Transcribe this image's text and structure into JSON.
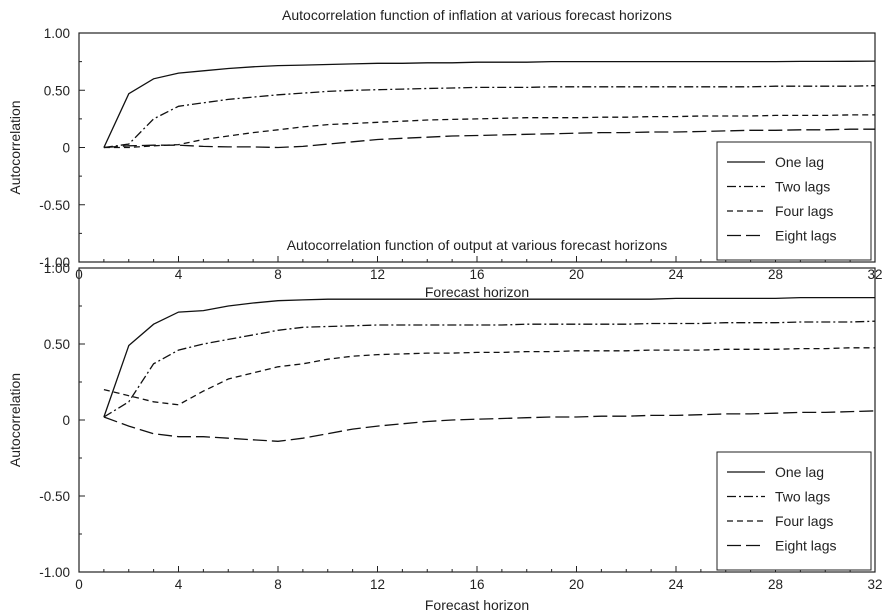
{
  "chart_data": [
    {
      "type": "line",
      "title": "Autocorrelation function of inflation at various forecast horizons",
      "xlabel": "Forecast horizon",
      "ylabel": "Autocorrelation",
      "xlim": [
        0,
        32
      ],
      "ylim": [
        -1,
        1
      ],
      "xticks": [
        0,
        4,
        8,
        12,
        16,
        20,
        24,
        28,
        32
      ],
      "yticks": [
        -1,
        -0.5,
        0,
        0.5,
        1
      ],
      "ytick_labels": [
        "-1.00",
        "-0.50",
        "0",
        "0.50",
        "1.00"
      ],
      "legend_position": "bottom-right",
      "grid": false,
      "x": [
        1,
        2,
        3,
        4,
        5,
        6,
        7,
        8,
        9,
        10,
        11,
        12,
        13,
        14,
        15,
        16,
        17,
        18,
        19,
        20,
        21,
        22,
        23,
        24,
        25,
        26,
        27,
        28,
        29,
        30,
        31,
        32
      ],
      "series": [
        {
          "name": "One lag",
          "dash": "solid",
          "values": [
            0.0,
            0.47,
            0.6,
            0.65,
            0.67,
            0.69,
            0.705,
            0.715,
            0.72,
            0.725,
            0.73,
            0.735,
            0.735,
            0.74,
            0.74,
            0.745,
            0.745,
            0.745,
            0.75,
            0.75,
            0.75,
            0.75,
            0.75,
            0.75,
            0.75,
            0.75,
            0.75,
            0.75,
            0.752,
            0.752,
            0.753,
            0.755
          ]
        },
        {
          "name": "Two lags",
          "dash": "dashdot",
          "values": [
            0.0,
            0.03,
            0.25,
            0.36,
            0.39,
            0.42,
            0.44,
            0.46,
            0.475,
            0.49,
            0.5,
            0.505,
            0.51,
            0.515,
            0.52,
            0.525,
            0.525,
            0.525,
            0.53,
            0.53,
            0.53,
            0.53,
            0.53,
            0.53,
            0.53,
            0.53,
            0.53,
            0.535,
            0.535,
            0.535,
            0.535,
            0.54
          ]
        },
        {
          "name": "Four lags",
          "dash": "dashed",
          "values": [
            0.0,
            0.0,
            0.015,
            0.025,
            0.07,
            0.1,
            0.13,
            0.155,
            0.18,
            0.2,
            0.21,
            0.22,
            0.23,
            0.24,
            0.245,
            0.25,
            0.255,
            0.26,
            0.26,
            0.26,
            0.265,
            0.265,
            0.27,
            0.27,
            0.275,
            0.275,
            0.275,
            0.28,
            0.28,
            0.28,
            0.285,
            0.285
          ]
        },
        {
          "name": "Eight lags",
          "dash": "longdash",
          "values": [
            0.0,
            0.015,
            0.02,
            0.02,
            0.01,
            0.005,
            0.005,
            0.0,
            0.01,
            0.03,
            0.05,
            0.07,
            0.08,
            0.09,
            0.1,
            0.105,
            0.11,
            0.115,
            0.12,
            0.125,
            0.13,
            0.13,
            0.135,
            0.135,
            0.14,
            0.145,
            0.15,
            0.15,
            0.155,
            0.155,
            0.16,
            0.16
          ]
        }
      ]
    },
    {
      "type": "line",
      "title": "Autocorrelation function of output at various forecast horizons",
      "xlabel": "Forecast horizon",
      "ylabel": "Autocorrelation",
      "xlim": [
        0,
        32
      ],
      "ylim": [
        -1,
        1
      ],
      "xticks": [
        0,
        4,
        8,
        12,
        16,
        20,
        24,
        28,
        32
      ],
      "yticks": [
        -1,
        -0.5,
        0,
        0.5,
        1
      ],
      "ytick_labels": [
        "-1.00",
        "-0.50",
        "0",
        "0.50",
        "1.00"
      ],
      "legend_position": "bottom-right",
      "grid": false,
      "x": [
        1,
        2,
        3,
        4,
        5,
        6,
        7,
        8,
        9,
        10,
        11,
        12,
        13,
        14,
        15,
        16,
        17,
        18,
        19,
        20,
        21,
        22,
        23,
        24,
        25,
        26,
        27,
        28,
        29,
        30,
        31,
        32
      ],
      "series": [
        {
          "name": "One lag",
          "dash": "solid",
          "values": [
            0.02,
            0.49,
            0.63,
            0.71,
            0.72,
            0.75,
            0.77,
            0.785,
            0.79,
            0.795,
            0.795,
            0.795,
            0.795,
            0.795,
            0.795,
            0.795,
            0.795,
            0.795,
            0.795,
            0.795,
            0.795,
            0.795,
            0.795,
            0.8,
            0.8,
            0.8,
            0.8,
            0.8,
            0.805,
            0.805,
            0.805,
            0.805
          ]
        },
        {
          "name": "Two lags",
          "dash": "dashdot",
          "values": [
            0.02,
            0.12,
            0.37,
            0.46,
            0.5,
            0.53,
            0.56,
            0.59,
            0.61,
            0.615,
            0.62,
            0.625,
            0.625,
            0.625,
            0.625,
            0.625,
            0.625,
            0.63,
            0.63,
            0.63,
            0.63,
            0.63,
            0.635,
            0.635,
            0.635,
            0.64,
            0.64,
            0.64,
            0.645,
            0.645,
            0.645,
            0.65
          ]
        },
        {
          "name": "Four lags",
          "dash": "dashed",
          "values": [
            0.2,
            0.16,
            0.12,
            0.1,
            0.19,
            0.27,
            0.31,
            0.35,
            0.37,
            0.4,
            0.42,
            0.43,
            0.435,
            0.44,
            0.44,
            0.445,
            0.445,
            0.45,
            0.45,
            0.455,
            0.455,
            0.455,
            0.46,
            0.46,
            0.46,
            0.465,
            0.465,
            0.465,
            0.47,
            0.47,
            0.475,
            0.475
          ]
        },
        {
          "name": "Eight lags",
          "dash": "longdash",
          "values": [
            0.02,
            -0.04,
            -0.09,
            -0.11,
            -0.11,
            -0.12,
            -0.13,
            -0.14,
            -0.12,
            -0.09,
            -0.06,
            -0.04,
            -0.025,
            -0.01,
            0.0,
            0.005,
            0.01,
            0.015,
            0.02,
            0.02,
            0.025,
            0.025,
            0.03,
            0.03,
            0.035,
            0.04,
            0.04,
            0.045,
            0.05,
            0.05,
            0.055,
            0.06
          ]
        }
      ]
    }
  ]
}
